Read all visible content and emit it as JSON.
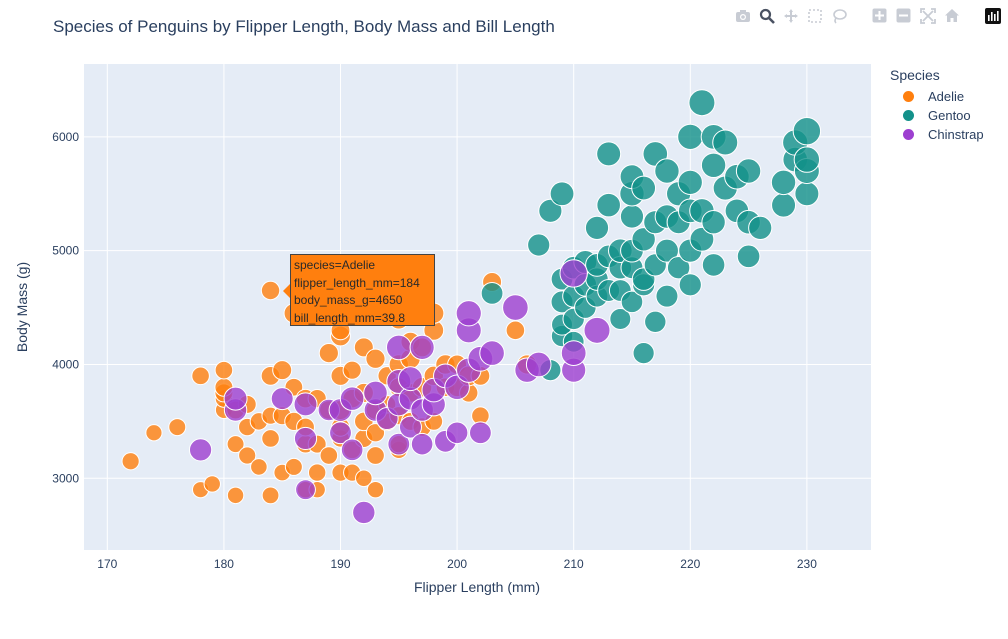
{
  "title": "Species of Penguins by Flipper Length, Body Mass and Bill Length",
  "modebar": [
    "camera-icon",
    "zoom-icon",
    "pan-icon",
    "box-select-icon",
    "lasso-icon",
    "zoom-in-icon",
    "zoom-out-icon",
    "autoscale-icon",
    "reset-axes-icon",
    "plotly-logo-icon"
  ],
  "legend": {
    "title": "Species",
    "items": [
      {
        "name": "Adelie",
        "color": "#ff7f0e"
      },
      {
        "name": "Gentoo",
        "color": "#13918a"
      },
      {
        "name": "Chinstrap",
        "color": "#9d3fd0"
      }
    ]
  },
  "hover": {
    "line1": "species=Adelie",
    "line2": "flipper_length_mm=184",
    "line3": "body_mass_g=4650",
    "line4": "bill_length_mm=39.8"
  },
  "chart_data": {
    "type": "scatter",
    "title": "Species of Penguins by Flipper Length, Body Mass and Bill Length",
    "xlabel": "Flipper Length (mm)",
    "ylabel": "Body Mass (g)",
    "xlim": [
      168,
      235.5
    ],
    "ylim": [
      2370,
      6640
    ],
    "xticks": [
      170,
      180,
      190,
      200,
      210,
      220,
      230
    ],
    "yticks": [
      3000,
      4000,
      5000,
      6000
    ],
    "grid": true,
    "legend_position": "top-right",
    "size_variable": "bill_length_mm",
    "series": [
      {
        "name": "Adelie",
        "color": "#ff7f0e",
        "points": [
          [
            172,
            3150,
            37.8
          ],
          [
            174,
            3400,
            35.9
          ],
          [
            176,
            3450,
            37.3
          ],
          [
            178,
            2900,
            36.0
          ],
          [
            178,
            3900,
            38.5
          ],
          [
            179,
            2950,
            36.2
          ],
          [
            180,
            3600,
            37.4
          ],
          [
            180,
            3700,
            38.1
          ],
          [
            180,
            3750,
            39.0
          ],
          [
            180,
            3800,
            39.3
          ],
          [
            180,
            3950,
            38.6
          ],
          [
            181,
            2850,
            36.4
          ],
          [
            181,
            3300,
            37.2
          ],
          [
            181,
            3600,
            38.8
          ],
          [
            182,
            3200,
            37.6
          ],
          [
            182,
            3450,
            38.2
          ],
          [
            182,
            3650,
            39.1
          ],
          [
            183,
            3100,
            36.8
          ],
          [
            183,
            3500,
            38.0
          ],
          [
            184,
            2850,
            37.0
          ],
          [
            184,
            3350,
            38.3
          ],
          [
            184,
            3550,
            37.7
          ],
          [
            184,
            3900,
            40.6
          ],
          [
            184,
            4650,
            39.8
          ],
          [
            185,
            3050,
            36.6
          ],
          [
            185,
            3550,
            39.2
          ],
          [
            185,
            3950,
            41.1
          ],
          [
            186,
            3100,
            37.5
          ],
          [
            186,
            3500,
            39.6
          ],
          [
            186,
            3800,
            38.9
          ],
          [
            186,
            4450,
            42.0
          ],
          [
            187,
            2900,
            36.5
          ],
          [
            187,
            3300,
            38.7
          ],
          [
            187,
            3450,
            38.8
          ],
          [
            187,
            3700,
            40.3
          ],
          [
            188,
            2900,
            36.2
          ],
          [
            188,
            3050,
            37.9
          ],
          [
            188,
            3300,
            39.0
          ],
          [
            188,
            3700,
            39.5
          ],
          [
            189,
            3200,
            38.6
          ],
          [
            189,
            3600,
            40.2
          ],
          [
            189,
            4100,
            41.4
          ],
          [
            190,
            3050,
            37.7
          ],
          [
            190,
            3350,
            38.1
          ],
          [
            190,
            3450,
            39.7
          ],
          [
            190,
            3600,
            40.9
          ],
          [
            190,
            3900,
            41.1
          ],
          [
            190,
            4250,
            42.2
          ],
          [
            190,
            4300,
            40.6
          ],
          [
            191,
            3050,
            37.6
          ],
          [
            191,
            3250,
            38.6
          ],
          [
            191,
            3700,
            40.2
          ],
          [
            191,
            3950,
            39.6
          ],
          [
            192,
            3000,
            36.7
          ],
          [
            192,
            3350,
            39.1
          ],
          [
            192,
            3500,
            40.3
          ],
          [
            192,
            3750,
            41.3
          ],
          [
            192,
            4150,
            40.8
          ],
          [
            193,
            2900,
            36.3
          ],
          [
            193,
            3200,
            38.9
          ],
          [
            193,
            3400,
            39.4
          ],
          [
            193,
            3600,
            40.5
          ],
          [
            193,
            4050,
            41.4
          ],
          [
            194,
            3500,
            40.1
          ],
          [
            194,
            3650,
            38.1
          ],
          [
            194,
            3900,
            39.8
          ],
          [
            195,
            3250,
            37.6
          ],
          [
            195,
            3300,
            38.2
          ],
          [
            195,
            3550,
            39.6
          ],
          [
            195,
            3800,
            40.7
          ],
          [
            195,
            4000,
            41.8
          ],
          [
            195,
            4400,
            43.2
          ],
          [
            196,
            3500,
            39.2
          ],
          [
            196,
            3750,
            40.3
          ],
          [
            196,
            4050,
            42.0
          ],
          [
            196,
            4200,
            41.1
          ],
          [
            197,
            3450,
            39.7
          ],
          [
            197,
            3800,
            41.5
          ],
          [
            197,
            4150,
            41.0
          ],
          [
            198,
            3500,
            38.8
          ],
          [
            198,
            3900,
            41.6
          ],
          [
            198,
            4300,
            42.3
          ],
          [
            198,
            4450,
            43.1
          ],
          [
            199,
            3800,
            40.2
          ],
          [
            199,
            4000,
            41.5
          ],
          [
            200,
            3800,
            40.6
          ],
          [
            200,
            4000,
            41.1
          ],
          [
            201,
            3750,
            39.7
          ],
          [
            201,
            3900,
            42.5
          ],
          [
            202,
            3550,
            38.6
          ],
          [
            202,
            3900,
            40.7
          ],
          [
            203,
            4725,
            41.1
          ],
          [
            205,
            4300,
            40.1
          ],
          [
            206,
            4000,
            41.3
          ]
        ]
      },
      {
        "name": "Gentoo",
        "color": "#13918a",
        "points": [
          [
            203,
            4625,
            46.1
          ],
          [
            207,
            5050,
            46.5
          ],
          [
            208,
            3950,
            44.9
          ],
          [
            208,
            5350,
            48.4
          ],
          [
            209,
            4250,
            45.1
          ],
          [
            209,
            4350,
            44.5
          ],
          [
            209,
            4550,
            46.3
          ],
          [
            209,
            4750,
            46.0
          ],
          [
            209,
            5500,
            49.6
          ],
          [
            210,
            4200,
            44.0
          ],
          [
            210,
            4400,
            45.2
          ],
          [
            210,
            4600,
            46.3
          ],
          [
            210,
            4850,
            47.5
          ],
          [
            211,
            4500,
            45.7
          ],
          [
            211,
            4700,
            47.2
          ],
          [
            211,
            4900,
            48.1
          ],
          [
            212,
            4600,
            45.9
          ],
          [
            212,
            4750,
            47.0
          ],
          [
            212,
            4875,
            47.8
          ],
          [
            212,
            5200,
            48.6
          ],
          [
            213,
            4650,
            46.2
          ],
          [
            213,
            4950,
            47.5
          ],
          [
            213,
            5400,
            49.2
          ],
          [
            213,
            5850,
            50.0
          ],
          [
            214,
            4400,
            44.5
          ],
          [
            214,
            4650,
            45.8
          ],
          [
            214,
            4850,
            47.3
          ],
          [
            214,
            5000,
            49.1
          ],
          [
            215,
            4550,
            45.5
          ],
          [
            215,
            4850,
            46.4
          ],
          [
            215,
            5000,
            47.6
          ],
          [
            215,
            5300,
            48.4
          ],
          [
            215,
            5500,
            50.5
          ],
          [
            215,
            5650,
            49.5
          ],
          [
            216,
            4100,
            44.9
          ],
          [
            216,
            4700,
            46.6
          ],
          [
            216,
            4750,
            47.2
          ],
          [
            216,
            5100,
            48.7
          ],
          [
            216,
            5550,
            49.6
          ],
          [
            217,
            4375,
            45.3
          ],
          [
            217,
            4875,
            46.8
          ],
          [
            217,
            5250,
            48.5
          ],
          [
            217,
            5850,
            50.8
          ],
          [
            218,
            4600,
            46.2
          ],
          [
            218,
            5000,
            48.1
          ],
          [
            218,
            5300,
            49.3
          ],
          [
            218,
            5700,
            50.5
          ],
          [
            219,
            4850,
            46.9
          ],
          [
            219,
            5250,
            48.2
          ],
          [
            219,
            5500,
            50.2
          ],
          [
            220,
            4700,
            46.7
          ],
          [
            220,
            5000,
            48.5
          ],
          [
            220,
            5350,
            49.2
          ],
          [
            220,
            5600,
            50.1
          ],
          [
            220,
            6000,
            52.1
          ],
          [
            221,
            5100,
            49.4
          ],
          [
            221,
            5350,
            50.7
          ],
          [
            221,
            6300,
            53.4
          ],
          [
            222,
            4875,
            47.5
          ],
          [
            222,
            5250,
            48.8
          ],
          [
            222,
            5750,
            50.4
          ],
          [
            222,
            6000,
            51.3
          ],
          [
            223,
            5550,
            50.2
          ],
          [
            223,
            5950,
            51.5
          ],
          [
            224,
            5350,
            49.1
          ],
          [
            224,
            5650,
            50.8
          ],
          [
            225,
            4950,
            47.3
          ],
          [
            225,
            5250,
            49.0
          ],
          [
            225,
            5700,
            50.5
          ],
          [
            226,
            5200,
            48.6
          ],
          [
            228,
            5400,
            49.8
          ],
          [
            228,
            5600,
            50.4
          ],
          [
            229,
            5800,
            51.1
          ],
          [
            229,
            5950,
            52.0
          ],
          [
            230,
            5500,
            50.0
          ],
          [
            230,
            5700,
            51.5
          ],
          [
            230,
            5800,
            52.2
          ],
          [
            230,
            6050,
            55.9
          ]
        ]
      },
      {
        "name": "Chinstrap",
        "color": "#9d3fd0",
        "points": [
          [
            178,
            3250,
            46.5
          ],
          [
            181,
            3600,
            47.0
          ],
          [
            181,
            3700,
            48.2
          ],
          [
            185,
            3700,
            46.4
          ],
          [
            187,
            2900,
            42.5
          ],
          [
            187,
            3350,
            46.7
          ],
          [
            187,
            3650,
            48.0
          ],
          [
            189,
            3600,
            45.2
          ],
          [
            190,
            3400,
            46.1
          ],
          [
            190,
            3600,
            47.6
          ],
          [
            191,
            3250,
            45.5
          ],
          [
            191,
            3700,
            49.0
          ],
          [
            192,
            2700,
            46.9
          ],
          [
            193,
            3600,
            47.5
          ],
          [
            193,
            3750,
            49.2
          ],
          [
            194,
            3525,
            46.4
          ],
          [
            195,
            3300,
            45.9
          ],
          [
            195,
            3650,
            48.1
          ],
          [
            195,
            3850,
            50.0
          ],
          [
            195,
            4150,
            50.8
          ],
          [
            196,
            3450,
            46.3
          ],
          [
            196,
            3700,
            47.8
          ],
          [
            196,
            3875,
            49.5
          ],
          [
            197,
            3300,
            45.7
          ],
          [
            197,
            3600,
            47.2
          ],
          [
            197,
            4150,
            50.2
          ],
          [
            198,
            3650,
            48.4
          ],
          [
            198,
            3775,
            49.0
          ],
          [
            199,
            3325,
            46.0
          ],
          [
            199,
            3900,
            49.6
          ],
          [
            200,
            3400,
            45.6
          ],
          [
            200,
            3800,
            50.9
          ],
          [
            201,
            3950,
            50.5
          ],
          [
            201,
            4300,
            51.5
          ],
          [
            201,
            4450,
            52.0
          ],
          [
            202,
            3400,
            46.1
          ],
          [
            202,
            4050,
            51.4
          ],
          [
            203,
            4100,
            51.0
          ],
          [
            205,
            4500,
            52.7
          ],
          [
            206,
            3950,
            50.6
          ],
          [
            207,
            4000,
            50.9
          ],
          [
            210,
            3950,
            50.1
          ],
          [
            210,
            4100,
            51.3
          ],
          [
            210,
            4800,
            55.8
          ],
          [
            212,
            4300,
            53.5
          ]
        ]
      }
    ]
  }
}
